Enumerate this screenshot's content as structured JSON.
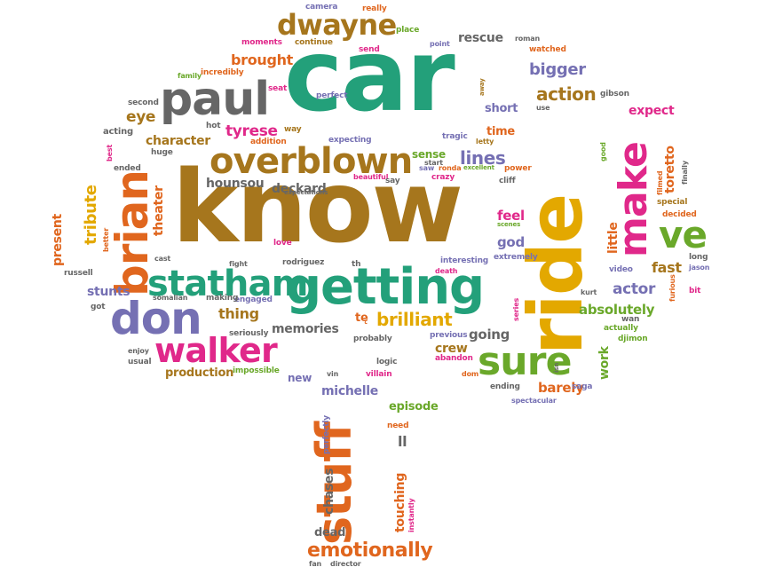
{
  "colors": {
    "teal": "#23a07a",
    "orange": "#e0661e",
    "purple": "#7570b3",
    "magenta": "#e0288a",
    "green": "#6aa82a",
    "gold": "#e3a800",
    "brown": "#a6761d",
    "gray": "#666666"
  },
  "words": [
    {
      "text": "car"
    },
    {
      "text": "know"
    },
    {
      "text": "ride"
    },
    {
      "text": "getting"
    },
    {
      "text": "stuff"
    },
    {
      "text": "paul"
    },
    {
      "text": "overblown"
    },
    {
      "text": "brian"
    },
    {
      "text": "don"
    },
    {
      "text": "dwayne"
    },
    {
      "text": "make"
    },
    {
      "text": "statham"
    },
    {
      "text": "sure"
    },
    {
      "text": "walker"
    },
    {
      "text": "ve"
    },
    {
      "text": "emotionally"
    },
    {
      "text": "brilliant"
    },
    {
      "text": "lines"
    },
    {
      "text": "action"
    },
    {
      "text": "bigger"
    },
    {
      "text": "rescue"
    },
    {
      "text": "brought"
    },
    {
      "text": "tyrese"
    },
    {
      "text": "character"
    },
    {
      "text": "eye"
    },
    {
      "text": "hounsou"
    },
    {
      "text": "deckard"
    },
    {
      "text": "tribute"
    },
    {
      "text": "theater"
    },
    {
      "text": "present"
    },
    {
      "text": "stunts"
    },
    {
      "text": "thing"
    },
    {
      "text": "memories"
    },
    {
      "text": "production"
    },
    {
      "text": "michelle"
    },
    {
      "text": "episode"
    },
    {
      "text": "chases"
    },
    {
      "text": "touching"
    },
    {
      "text": "dead"
    },
    {
      "text": "actor"
    },
    {
      "text": "absolutely"
    },
    {
      "text": "fast"
    },
    {
      "text": "god"
    },
    {
      "text": "feel"
    },
    {
      "text": "going"
    },
    {
      "text": "crew"
    },
    {
      "text": "barely"
    },
    {
      "text": "work"
    },
    {
      "text": "little"
    },
    {
      "text": "toretto"
    },
    {
      "text": "expect"
    },
    {
      "text": "short"
    },
    {
      "text": "time"
    },
    {
      "text": "sense"
    },
    {
      "text": "new"
    },
    {
      "text": "ll"
    },
    {
      "text": "tę"
    },
    {
      "text": "camera"
    },
    {
      "text": "really"
    },
    {
      "text": "place"
    },
    {
      "text": "moments"
    },
    {
      "text": "continue"
    },
    {
      "text": "send"
    },
    {
      "text": "point"
    },
    {
      "text": "roman"
    },
    {
      "text": "watched"
    },
    {
      "text": "family"
    },
    {
      "text": "incredibly"
    },
    {
      "text": "seat"
    },
    {
      "text": "perfect"
    },
    {
      "text": "second"
    },
    {
      "text": "hot"
    },
    {
      "text": "addition"
    },
    {
      "text": "way"
    },
    {
      "text": "expecting"
    },
    {
      "text": "acting"
    },
    {
      "text": "huge"
    },
    {
      "text": "ended"
    },
    {
      "text": "best"
    },
    {
      "text": "beautiful"
    },
    {
      "text": "say"
    },
    {
      "text": "crazy"
    },
    {
      "text": "saw"
    },
    {
      "text": "excellent"
    },
    {
      "text": "ronda"
    },
    {
      "text": "power"
    },
    {
      "text": "cliff"
    },
    {
      "text": "start"
    },
    {
      "text": "tragic"
    },
    {
      "text": "letty"
    },
    {
      "text": "gibson"
    },
    {
      "text": "away"
    },
    {
      "text": "use"
    },
    {
      "text": "good"
    },
    {
      "text": "finally"
    },
    {
      "text": "filmed"
    },
    {
      "text": "special"
    },
    {
      "text": "decided"
    },
    {
      "text": "long"
    },
    {
      "text": "jason"
    },
    {
      "text": "video"
    },
    {
      "text": "bit"
    },
    {
      "text": "furious"
    },
    {
      "text": "kurt"
    },
    {
      "text": "wan"
    },
    {
      "text": "actually"
    },
    {
      "text": "djimon"
    },
    {
      "text": "series"
    },
    {
      "text": "isn"
    },
    {
      "text": "saga"
    },
    {
      "text": "ending"
    },
    {
      "text": "spectacular"
    },
    {
      "text": "dom"
    },
    {
      "text": "abandon"
    },
    {
      "text": "previous"
    },
    {
      "text": "probably"
    },
    {
      "text": "logic"
    },
    {
      "text": "villain"
    },
    {
      "text": "vin"
    },
    {
      "text": "impossible"
    },
    {
      "text": "enjoy"
    },
    {
      "text": "usual"
    },
    {
      "text": "seriously"
    },
    {
      "text": "engaged"
    },
    {
      "text": "making"
    },
    {
      "text": "somalian"
    },
    {
      "text": "got"
    },
    {
      "text": "russell"
    },
    {
      "text": "better"
    },
    {
      "text": "cast"
    },
    {
      "text": "fight"
    },
    {
      "text": "love"
    },
    {
      "text": "rodriguez"
    },
    {
      "text": "th"
    },
    {
      "text": "interesting"
    },
    {
      "text": "death"
    },
    {
      "text": "extremely"
    },
    {
      "text": "scenes"
    },
    {
      "text": "expectations"
    },
    {
      "text": "perfectly"
    },
    {
      "text": "need"
    },
    {
      "text": "fan"
    },
    {
      "text": "director"
    },
    {
      "text": "instantly"
    },
    {
      "text": "make"
    }
  ]
}
